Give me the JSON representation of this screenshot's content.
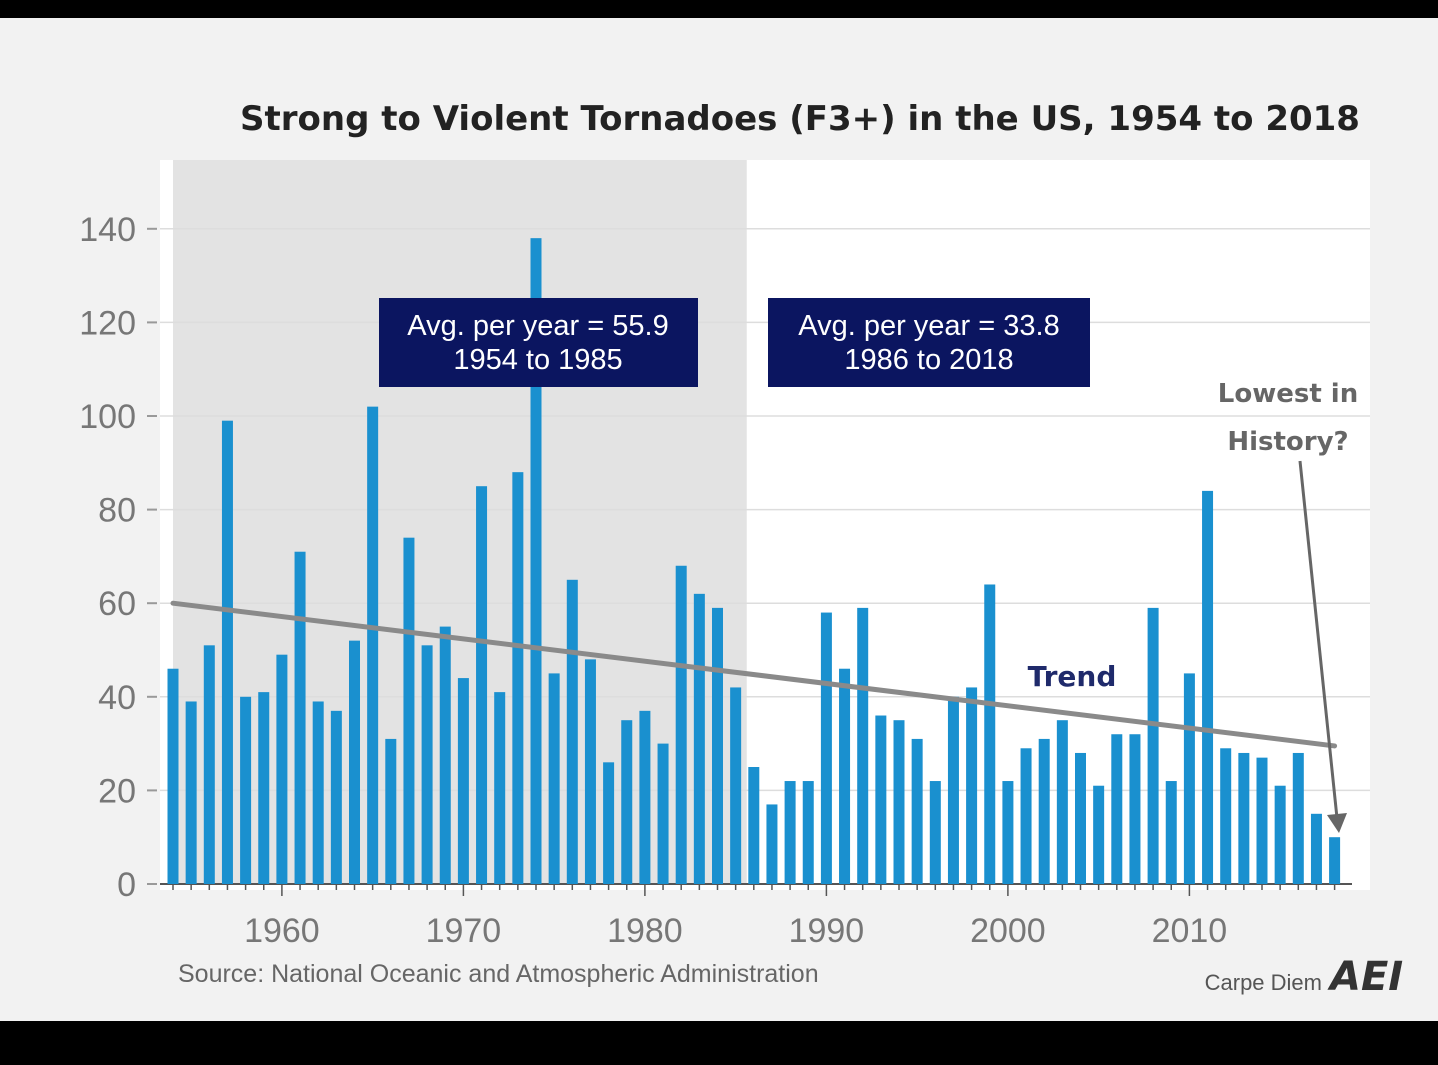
{
  "chart_data": {
    "type": "bar",
    "title": "Strong to Violent Tornadoes (F3+) in the US, 1954 to 2018",
    "x": [
      1954,
      1955,
      1956,
      1957,
      1958,
      1959,
      1960,
      1961,
      1962,
      1963,
      1964,
      1965,
      1966,
      1967,
      1968,
      1969,
      1970,
      1971,
      1972,
      1973,
      1974,
      1975,
      1976,
      1977,
      1978,
      1979,
      1980,
      1981,
      1982,
      1983,
      1984,
      1985,
      1986,
      1987,
      1988,
      1989,
      1990,
      1991,
      1992,
      1993,
      1994,
      1995,
      1996,
      1997,
      1998,
      1999,
      2000,
      2001,
      2002,
      2003,
      2004,
      2005,
      2006,
      2007,
      2008,
      2009,
      2010,
      2011,
      2012,
      2013,
      2014,
      2015,
      2016,
      2017,
      2018
    ],
    "values": [
      46,
      39,
      51,
      99,
      40,
      41,
      49,
      71,
      39,
      37,
      52,
      102,
      31,
      74,
      51,
      55,
      44,
      85,
      41,
      88,
      138,
      45,
      65,
      48,
      26,
      35,
      37,
      30,
      68,
      62,
      59,
      42,
      25,
      17,
      22,
      22,
      58,
      46,
      59,
      36,
      35,
      31,
      22,
      40,
      42,
      64,
      22,
      29,
      31,
      35,
      28,
      21,
      32,
      32,
      59,
      22,
      45,
      84,
      29,
      28,
      27,
      21,
      28,
      15,
      10
    ],
    "bar_color": "#1a90cf",
    "ylim": [
      0,
      150
    ],
    "yticks": [
      0,
      20,
      40,
      60,
      80,
      100,
      120,
      140
    ],
    "xticks": [
      1960,
      1970,
      1980,
      1990,
      2000,
      2010
    ],
    "grid": "horizontal",
    "shaded_period": [
      1954,
      1985
    ],
    "shade_color": "#e3e3e3",
    "trend": {
      "label": "Trend",
      "x": [
        1954,
        2018
      ],
      "y": [
        60,
        29.5
      ],
      "color": "#8a8a8a"
    },
    "annotations": [
      {
        "lines": [
          "Avg. per year = 55.9",
          "1954 to 1985"
        ]
      },
      {
        "lines": [
          "Avg. per year = 33.8",
          "1986 to 2018"
        ]
      }
    ],
    "box_color": "#0b1560",
    "callout": {
      "lines": [
        "Lowest in",
        "History?"
      ],
      "target_year": 2018
    },
    "source": "Source: National Oceanic and Atmospheric Administration",
    "brand": {
      "text": "Carpe Diem",
      "logo": "AEI"
    }
  }
}
